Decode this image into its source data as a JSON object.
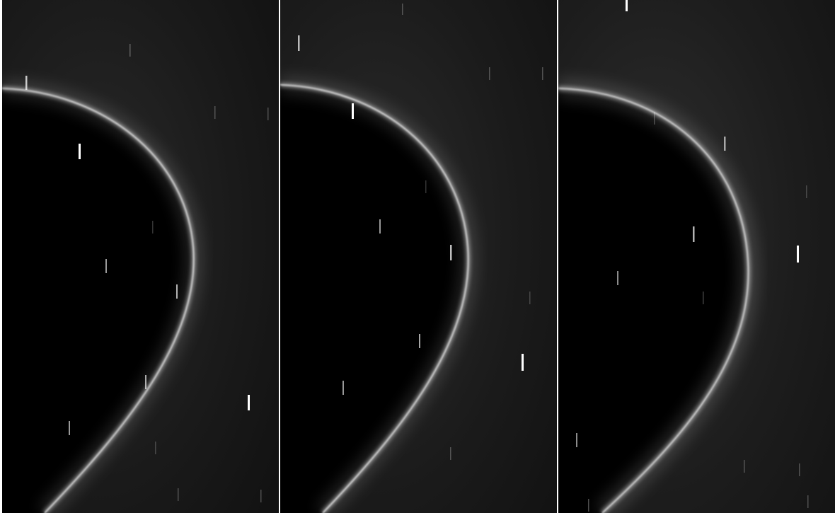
{
  "image": {
    "panels": [
      {
        "label": ""
      },
      {
        "label": ""
      },
      {
        "label": ""
      }
    ],
    "colors": {
      "background": "#ffffff",
      "sky": "#151515",
      "planet": "#000000",
      "ring": "#f0f0f0",
      "star": "#ffffff"
    }
  }
}
